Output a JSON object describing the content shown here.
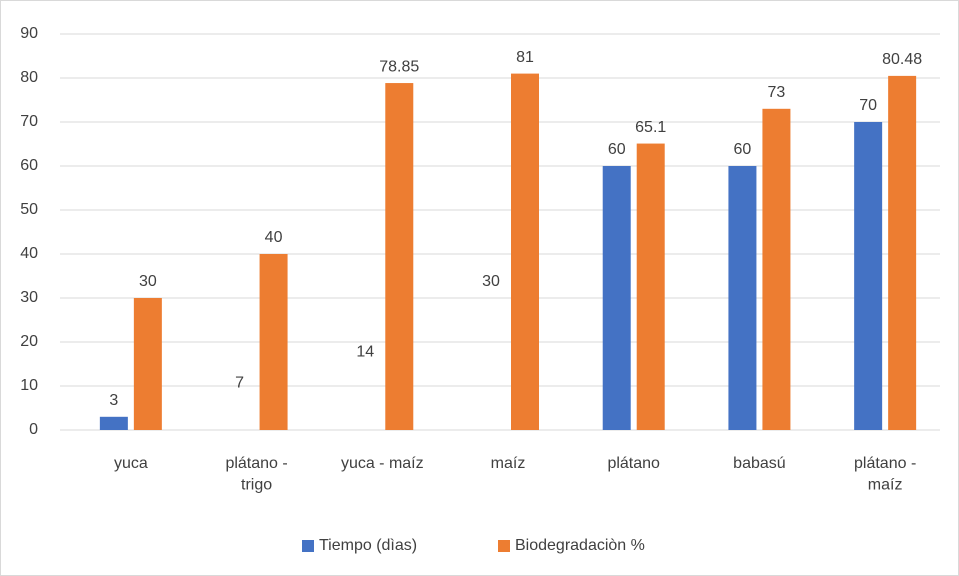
{
  "chart_data": {
    "type": "bar",
    "categories": [
      "yuca",
      "plátano -\ntrigo",
      "yuca - maíz",
      "maíz",
      "plátano",
      "babasú",
      "plátano -\nmaíz"
    ],
    "series": [
      {
        "name": "Tiempo (dìas)",
        "color": "#4472c4",
        "point_colors": [
          "#4472c4",
          "none",
          "none",
          "none",
          "#4472c4",
          "#4472c4",
          "#4472c4"
        ],
        "values": [
          3,
          7,
          14,
          30,
          60,
          60,
          70
        ]
      },
      {
        "name": "Biodegradaciòn %",
        "color": "#ed7d31",
        "values": [
          30,
          40,
          78.85,
          81,
          65.1,
          73,
          80.48
        ]
      }
    ],
    "ylim": [
      0,
      90
    ],
    "yticks": [
      0,
      10,
      20,
      30,
      40,
      50,
      60,
      70,
      80,
      90
    ],
    "grid": true,
    "legend": "bottom"
  }
}
